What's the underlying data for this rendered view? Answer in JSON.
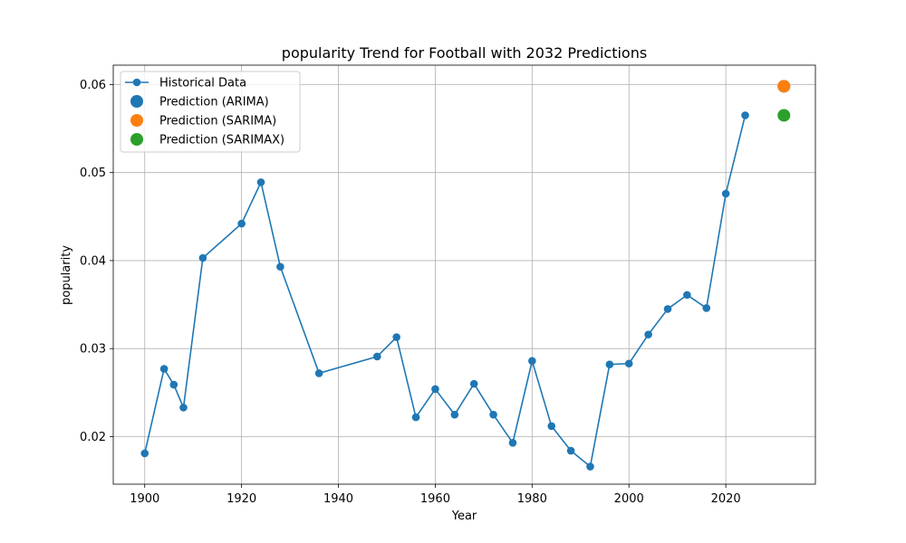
{
  "chart_data": {
    "type": "line",
    "title": "popularity Trend for Football with 2032 Predictions",
    "xlabel": "Year",
    "ylabel": "popularity",
    "xlim": [
      1893.5,
      2038.5
    ],
    "ylim": [
      0.0146,
      0.0622
    ],
    "xticks": [
      1900,
      1920,
      1940,
      1960,
      1980,
      2000,
      2020
    ],
    "yticks": [
      0.02,
      0.03,
      0.04,
      0.05,
      0.06
    ],
    "ytick_labels": [
      "0.02",
      "0.03",
      "0.04",
      "0.05",
      "0.06"
    ],
    "grid": true,
    "legend_position": "top-left",
    "series": [
      {
        "name": "Historical Data",
        "style": "line-marker",
        "color": "#1f77b4",
        "x": [
          1900,
          1904,
          1906,
          1908,
          1912,
          1920,
          1924,
          1928,
          1936,
          1948,
          1952,
          1956,
          1960,
          1964,
          1968,
          1972,
          1976,
          1980,
          1984,
          1988,
          1992,
          1996,
          2000,
          2004,
          2008,
          2012,
          2016,
          2020,
          2024
        ],
        "y": [
          0.0181,
          0.0277,
          0.0259,
          0.0233,
          0.0403,
          0.0442,
          0.0489,
          0.0393,
          0.0272,
          0.0291,
          0.0313,
          0.0222,
          0.0254,
          0.0225,
          0.026,
          0.0225,
          0.0193,
          0.0286,
          0.0212,
          0.0184,
          0.0166,
          0.0282,
          0.0283,
          0.0316,
          0.0345,
          0.0361,
          0.0346,
          0.0476,
          0.0565
        ]
      },
      {
        "name": "Prediction (ARIMA)",
        "style": "point",
        "color": "#1f77b4",
        "x": [
          2032
        ],
        "y": [
          0.0598
        ]
      },
      {
        "name": "Prediction (SARIMA)",
        "style": "point",
        "color": "#ff7f0e",
        "x": [
          2032
        ],
        "y": [
          0.0598
        ]
      },
      {
        "name": "Prediction (SARIMAX)",
        "style": "point",
        "color": "#2ca02c",
        "x": [
          2032
        ],
        "y": [
          0.0565
        ]
      }
    ]
  }
}
